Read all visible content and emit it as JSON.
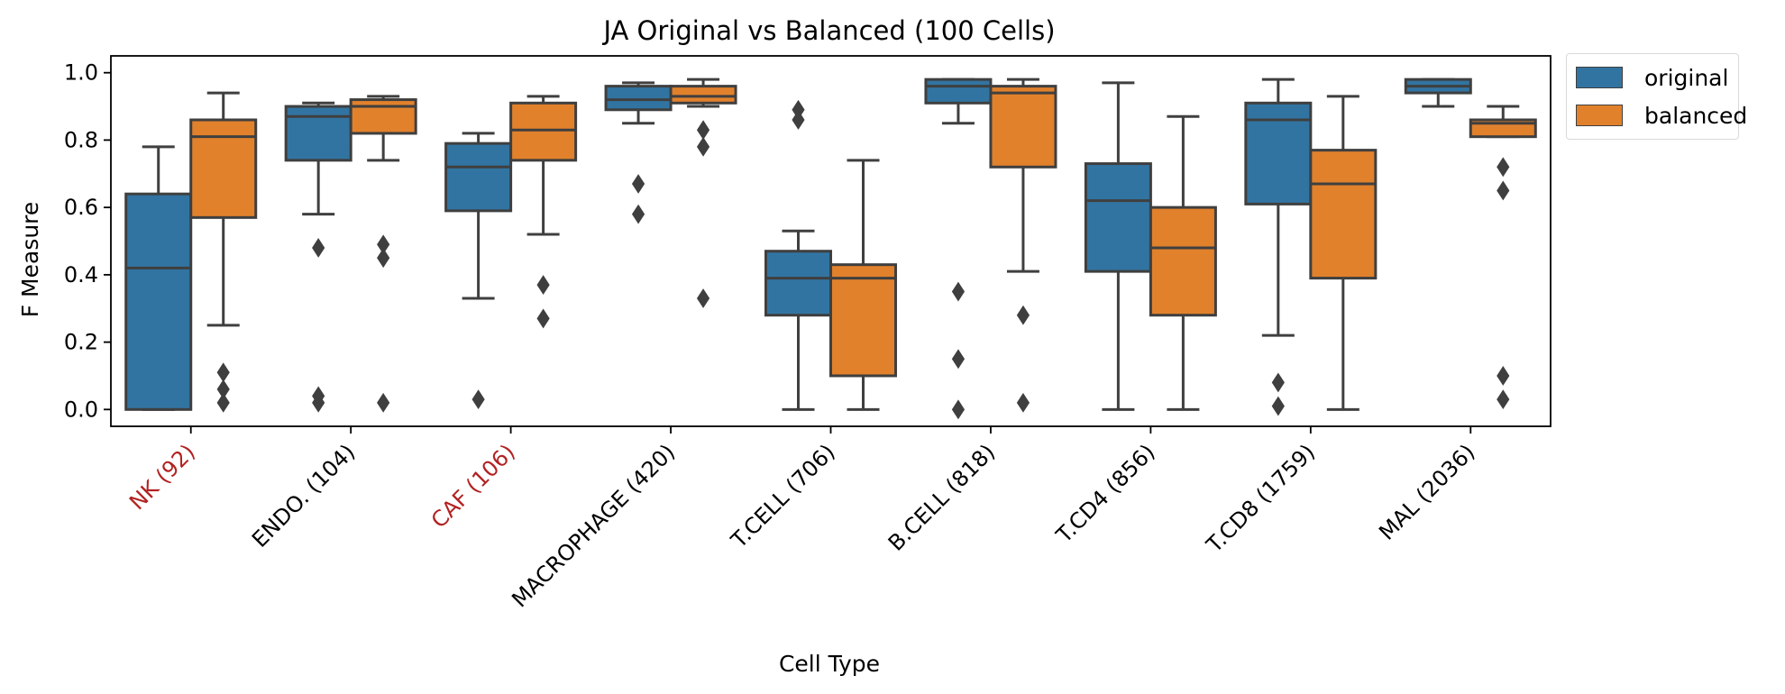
{
  "chart_data": {
    "type": "box",
    "title": "JA Original vs Balanced (100 Cells)",
    "xlabel": "Cell Type",
    "ylabel": "F Measure",
    "ylim": [
      -0.05,
      1.05
    ],
    "yticks": [
      0.0,
      0.2,
      0.4,
      0.6,
      0.8,
      1.0
    ],
    "ytick_labels": [
      "0.0",
      "0.2",
      "0.4",
      "0.6",
      "0.8",
      "1.0"
    ],
    "grid": false,
    "legend_position": "outside top-right",
    "highlight_color": "#b22222",
    "categories": [
      {
        "label": "NK (92)",
        "highlight": true
      },
      {
        "label": "ENDO. (104)",
        "highlight": false
      },
      {
        "label": "CAF (106)",
        "highlight": true
      },
      {
        "label": "MACROPHAGE (420)",
        "highlight": false
      },
      {
        "label": "T.CELL (706)",
        "highlight": false
      },
      {
        "label": "B.CELL (818)",
        "highlight": false
      },
      {
        "label": "T.CD4 (856)",
        "highlight": false
      },
      {
        "label": "T.CD8 (1759)",
        "highlight": false
      },
      {
        "label": "MAL (2036)",
        "highlight": false
      }
    ],
    "series": [
      {
        "name": "original",
        "color": "#3274a1",
        "boxes": [
          {
            "whislo": 0.0,
            "q1": 0.0,
            "med": 0.42,
            "q3": 0.64,
            "whishi": 0.78,
            "fliers": []
          },
          {
            "whislo": 0.58,
            "q1": 0.74,
            "med": 0.87,
            "q3": 0.9,
            "whishi": 0.91,
            "fliers": [
              0.48,
              0.04,
              0.02
            ]
          },
          {
            "whislo": 0.33,
            "q1": 0.59,
            "med": 0.72,
            "q3": 0.79,
            "whishi": 0.82,
            "fliers": [
              0.03
            ]
          },
          {
            "whislo": 0.85,
            "q1": 0.89,
            "med": 0.92,
            "q3": 0.96,
            "whishi": 0.97,
            "fliers": [
              0.67,
              0.58
            ]
          },
          {
            "whislo": 0.0,
            "q1": 0.28,
            "med": 0.39,
            "q3": 0.47,
            "whishi": 0.53,
            "fliers": [
              0.89,
              0.86
            ]
          },
          {
            "whislo": 0.85,
            "q1": 0.91,
            "med": 0.96,
            "q3": 0.98,
            "whishi": 0.98,
            "fliers": [
              0.35,
              0.15,
              0.0
            ]
          },
          {
            "whislo": 0.0,
            "q1": 0.41,
            "med": 0.62,
            "q3": 0.73,
            "whishi": 0.97,
            "fliers": []
          },
          {
            "whislo": 0.22,
            "q1": 0.61,
            "med": 0.86,
            "q3": 0.91,
            "whishi": 0.98,
            "fliers": [
              0.08,
              0.01
            ]
          },
          {
            "whislo": 0.9,
            "q1": 0.94,
            "med": 0.96,
            "q3": 0.98,
            "whishi": 0.98,
            "fliers": []
          }
        ]
      },
      {
        "name": "balanced",
        "color": "#e1812c",
        "boxes": [
          {
            "whislo": 0.25,
            "q1": 0.57,
            "med": 0.81,
            "q3": 0.86,
            "whishi": 0.94,
            "fliers": [
              0.11,
              0.06,
              0.02
            ]
          },
          {
            "whislo": 0.74,
            "q1": 0.82,
            "med": 0.9,
            "q3": 0.92,
            "whishi": 0.93,
            "fliers": [
              0.49,
              0.45,
              0.02
            ]
          },
          {
            "whislo": 0.52,
            "q1": 0.74,
            "med": 0.83,
            "q3": 0.91,
            "whishi": 0.93,
            "fliers": [
              0.37,
              0.27
            ]
          },
          {
            "whislo": 0.9,
            "q1": 0.91,
            "med": 0.93,
            "q3": 0.96,
            "whishi": 0.98,
            "fliers": [
              0.83,
              0.78,
              0.33
            ]
          },
          {
            "whislo": 0.0,
            "q1": 0.1,
            "med": 0.39,
            "q3": 0.43,
            "whishi": 0.74,
            "fliers": []
          },
          {
            "whislo": 0.41,
            "q1": 0.72,
            "med": 0.94,
            "q3": 0.96,
            "whishi": 0.98,
            "fliers": [
              0.28,
              0.02
            ]
          },
          {
            "whislo": 0.0,
            "q1": 0.28,
            "med": 0.48,
            "q3": 0.6,
            "whishi": 0.87,
            "fliers": []
          },
          {
            "whislo": 0.0,
            "q1": 0.39,
            "med": 0.67,
            "q3": 0.77,
            "whishi": 0.93,
            "fliers": []
          },
          {
            "whislo": 0.81,
            "q1": 0.81,
            "med": 0.85,
            "q3": 0.86,
            "whishi": 0.9,
            "fliers": [
              0.72,
              0.65,
              0.1,
              0.03
            ]
          }
        ]
      }
    ]
  }
}
